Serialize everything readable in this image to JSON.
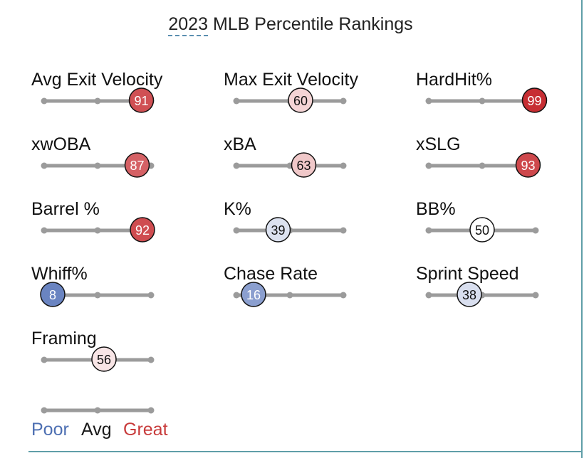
{
  "title_year": "2023",
  "title_rest": "MLB Percentile Rankings",
  "colors": {
    "track": "#9b9b9b",
    "poor": "#4d6fb2",
    "avg": "#1a1a1a",
    "great": "#c83b3b"
  },
  "chart_data": {
    "type": "percentile-bar",
    "title": "2023 MLB Percentile Rankings",
    "scale": [
      0,
      100
    ],
    "metrics": [
      {
        "label": "Avg Exit Velocity",
        "value": 91
      },
      {
        "label": "Max Exit Velocity",
        "value": 60
      },
      {
        "label": "HardHit%",
        "value": 99
      },
      {
        "label": "xwOBA",
        "value": 87
      },
      {
        "label": "xBA",
        "value": 63
      },
      {
        "label": "xSLG",
        "value": 93
      },
      {
        "label": "Barrel %",
        "value": 92
      },
      {
        "label": "K%",
        "value": 39
      },
      {
        "label": "BB%",
        "value": 50
      },
      {
        "label": "Whiff%",
        "value": 8
      },
      {
        "label": "Chase Rate",
        "value": 16
      },
      {
        "label": "Sprint Speed",
        "value": 38
      },
      {
        "label": "Framing",
        "value": 56
      }
    ],
    "legend": {
      "poor": "Poor",
      "avg": "Avg",
      "great": "Great"
    }
  }
}
